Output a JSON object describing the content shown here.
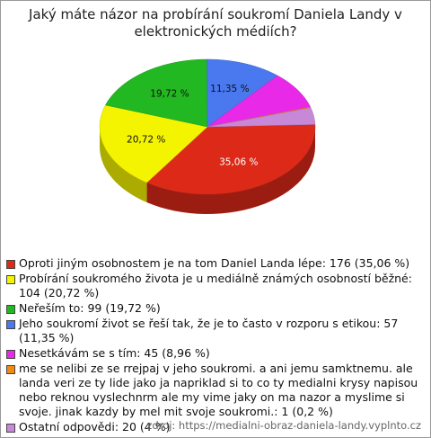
{
  "chart_data": {
    "type": "pie3d",
    "title": "Jaký máte názor na probírání soukromí Daniela Landy v elektronických médiích?",
    "categories": [
      "Oproti jiným osobnostem je na tom Daniel Landa lépe: 176 (35,06 %)",
      "Probírání soukromého života je u mediálně známých osobností běžné: 104 (20,72 %)",
      "Neřeším to: 99 (19,72 %)",
      "Jeho soukromí život se řeší tak, že je to často v rozporu s etikou: 57 (11,35 %)",
      "Nesetkávám se s tím: 45 (8,96 %)",
      "me se nelibi ze se rrejpaj v jeho soukromi. a ani jemu samktnemu. ale landa veri ze ty lide jako ja napriklad si to co ty medialni krysy napisou nebo reknou vyslechnrm ale my vime jaky on ma nazor a myslime si svoje. jinak kazdy by mel mit svoje soukromi.: 1 (0,2 %)",
      "Ostatní odpovědi: 20 (4 %)"
    ],
    "values": [
      35.06,
      20.72,
      19.72,
      11.35,
      8.96,
      0.2,
      4
    ],
    "value_labels": [
      "35,06 %",
      "20,72 %",
      "19,72 %",
      "11,35 %",
      null,
      null,
      null
    ],
    "colors": [
      "#dd2a18",
      "#f4f400",
      "#22b822",
      "#4a78ee",
      "#e829e8",
      "#f08a10",
      "#c888d8"
    ],
    "source": "zdroj: https://medialni-obraz-daniela-landy.vyplnto.cz"
  }
}
